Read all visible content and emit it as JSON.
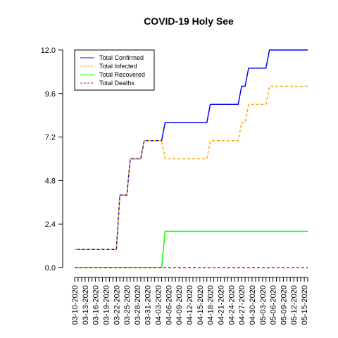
{
  "chart_data": {
    "type": "line",
    "title": "COVID-19 Holy See",
    "xlabel": "",
    "ylabel": "",
    "ylim": [
      0,
      12
    ],
    "y_ticks": [
      "0.0",
      "2.4",
      "4.8",
      "7.2",
      "9.6",
      "12.0"
    ],
    "y_tick_values": [
      0,
      2.4,
      4.8,
      7.2,
      9.6,
      12.0
    ],
    "x_start": "03-10-2020",
    "x_end": "05-16-2020",
    "x_tick_labels": [
      "03-10-2020",
      "03-13-2020",
      "03-16-2020",
      "03-19-2020",
      "03-22-2020",
      "03-25-2020",
      "03-28-2020",
      "03-31-2020",
      "04-03-2020",
      "04-06-2020",
      "04-09-2020",
      "04-12-2020",
      "04-15-2020",
      "04-18-2020",
      "04-21-2020",
      "04-24-2020",
      "04-27-2020",
      "04-30-2020",
      "05-03-2020",
      "05-06-2020",
      "05-09-2020",
      "05-12-2020",
      "05-15-2020"
    ],
    "legend_position": "top-left",
    "series": [
      {
        "name": "Total Confirmed",
        "color": "#0000ff",
        "dash": "solid",
        "points": [
          [
            "03-10-2020",
            1
          ],
          [
            "03-22-2020",
            1
          ],
          [
            "03-23-2020",
            4
          ],
          [
            "03-25-2020",
            4
          ],
          [
            "03-26-2020",
            6
          ],
          [
            "03-29-2020",
            6
          ],
          [
            "03-30-2020",
            7
          ],
          [
            "04-04-2020",
            7
          ],
          [
            "04-05-2020",
            8
          ],
          [
            "04-17-2020",
            8
          ],
          [
            "04-18-2020",
            9
          ],
          [
            "04-26-2020",
            9
          ],
          [
            "04-27-2020",
            10
          ],
          [
            "04-28-2020",
            10
          ],
          [
            "04-29-2020",
            11
          ],
          [
            "05-04-2020",
            11
          ],
          [
            "05-05-2020",
            12
          ],
          [
            "05-16-2020",
            12
          ]
        ]
      },
      {
        "name": "Total Infected",
        "color": "#ffa500",
        "dash": "dashed",
        "points": [
          [
            "03-10-2020",
            1
          ],
          [
            "03-22-2020",
            1
          ],
          [
            "03-23-2020",
            4
          ],
          [
            "03-25-2020",
            4
          ],
          [
            "03-26-2020",
            6
          ],
          [
            "03-29-2020",
            6
          ],
          [
            "03-30-2020",
            7
          ],
          [
            "04-04-2020",
            7
          ],
          [
            "04-05-2020",
            6
          ],
          [
            "04-17-2020",
            6
          ],
          [
            "04-18-2020",
            7
          ],
          [
            "04-26-2020",
            7
          ],
          [
            "04-27-2020",
            8
          ],
          [
            "04-28-2020",
            8
          ],
          [
            "04-29-2020",
            9
          ],
          [
            "05-04-2020",
            9
          ],
          [
            "05-05-2020",
            10
          ],
          [
            "05-16-2020",
            10
          ]
        ]
      },
      {
        "name": "Total Recovered",
        "color": "#00ff00",
        "dash": "solid",
        "points": [
          [
            "03-10-2020",
            0
          ],
          [
            "04-04-2020",
            0
          ],
          [
            "04-05-2020",
            2
          ],
          [
            "05-16-2020",
            2
          ]
        ]
      },
      {
        "name": "Total Deaths",
        "color": "#ff0000",
        "dash": "dashed",
        "points": [
          [
            "03-10-2020",
            0
          ],
          [
            "05-16-2020",
            0
          ]
        ]
      }
    ]
  }
}
